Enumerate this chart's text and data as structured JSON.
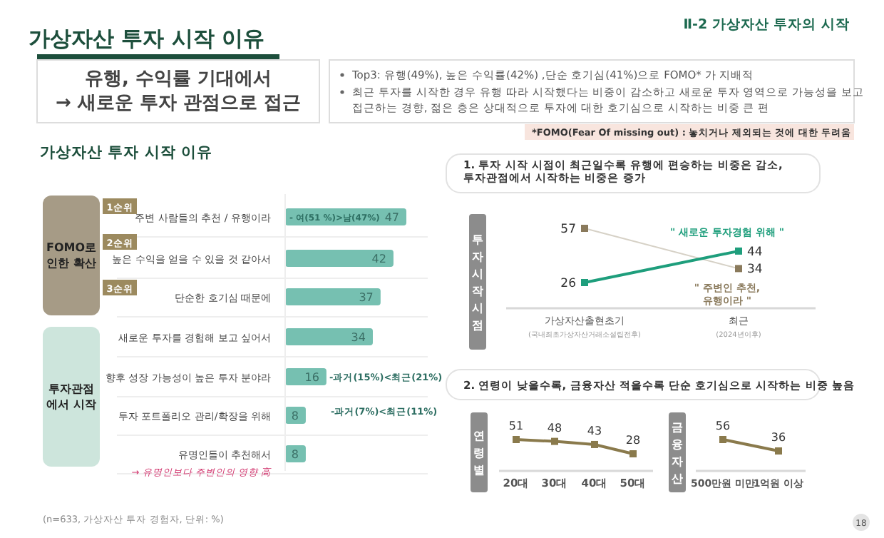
{
  "chart_data": [
    {
      "type": "other",
      "title": "가상자산 투자 시작 이유",
      "subtitle": "Ⅱ-2 가상자산 투자의 시작",
      "annotations": [
        "유행, 수익률 기대에서\n→ 새로운 투자 관점으로 접근",
        "Top3: 유행(49%), 높은 수익률(42%) ,단순 호기심(41%)으로 FOMO* 가 지배적",
        "최근 투자를 시작한 경우 유행 따라 시작했다는 비중이 감소하고 새로운 투자 영역으로 가능성을 보고\n접근하는 경향, 젊은 층은  상대적으로 투자에 대한 호기심으로 시작하는 비중 큰 편",
        "*FOMO(Fear Of  missing out) : 놓치거나 제외되는 것에 대한 두려움",
        "18"
      ]
    },
    {
      "type": "bar",
      "orientation": "horizontal",
      "title": "가상자산 투자 시작 이유",
      "categories": [
        "주변 사람들의 추천 / 유행이라",
        "높은 수익을 얻을 수 있을 것 같아서",
        "단순한 호기심 때문에",
        "새로운 투자를 경험해 보고 싶어서",
        "향후 성장 가능성이 높은 투자 분야라",
        "투자 포트폴리오 관리/확장을 위해",
        "유명인들이 추천해서"
      ],
      "values": [
        47,
        42,
        37,
        34,
        16,
        8,
        8
      ],
      "color": "#76c0b1",
      "data_labels": true,
      "annotations": [
        "1순위",
        "2순위",
        "3순위",
        "FOMO로\n인한 확산",
        "투자관점\n에서 시작",
        "- 여(51 %)>남(47%)",
        "-과거(15%)<최근(21%)",
        "-과거(7%)<최근(11%)",
        "→ 유명인보다 주변인의 영향 高",
        "(n=633, 가상자산 투자 경험자, 단위: %)"
      ]
    },
    {
      "type": "line",
      "title": "1.  투자 시작 시점이 최근일수록 유행에 편승하는 비중은 감소,\n투자관점에서 시작하는 비중은 증가",
      "ylabel": "투자시작시점",
      "categories": [
        "가상자산출현초기",
        "최근"
      ],
      "annotations": [
        "(국내최초가상자산거래소설립전후)",
        "(2024년이후)"
      ],
      "marker": "square",
      "data_labels": true,
      "series": [
        {
          "name": "\" 주변인 추천,\n유행이라 \"",
          "color": "#8a7a5c",
          "values": [
            57,
            34
          ]
        },
        {
          "name": "\" 새로운 투자경험 위해 \"",
          "color": "#1e9e7c",
          "values": [
            26,
            44
          ]
        }
      ]
    },
    {
      "type": "line",
      "title": "2.  연령이 낮을수록, 금융자산 적을수록 단순 호기심으로 시작하는 비중 높음",
      "ylabel": "연령별",
      "categories": [
        "20대",
        "30대",
        "40대",
        "50대"
      ],
      "values": [
        51,
        48,
        43,
        28
      ],
      "color": "#8a7a4c",
      "marker": "square",
      "data_labels": true
    },
    {
      "type": "line",
      "ylabel": "금융자산",
      "categories": [
        "500만원 미만",
        "1억원 이상"
      ],
      "values": [
        56,
        36
      ],
      "color": "#8a7a4c",
      "marker": "square",
      "data_labels": true
    }
  ]
}
